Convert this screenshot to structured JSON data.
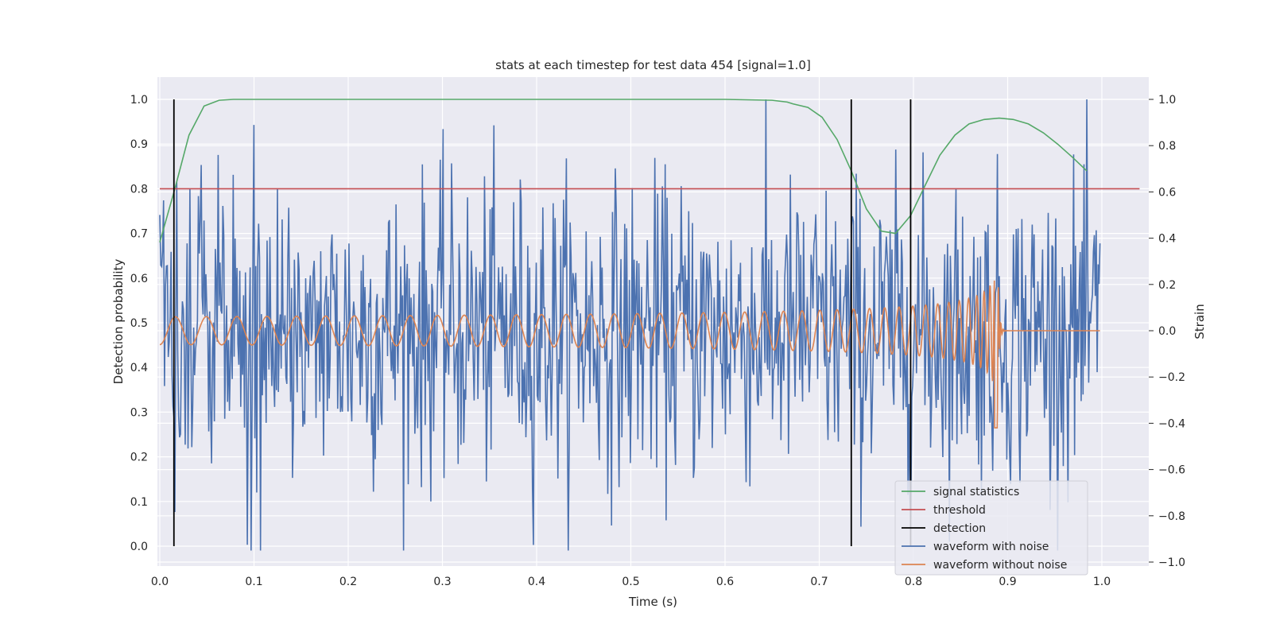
{
  "chart_data": {
    "type": "line",
    "title": "stats at each timestep for test data 454 [signal=1.0]",
    "xlabel": "Time (s)",
    "ylabel": "Detection probability",
    "y2label": "Strain",
    "xlim": [
      0.0,
      1.05
    ],
    "ylim": [
      -0.04,
      1.05
    ],
    "y2lim": [
      -1.04,
      1.04
    ],
    "xticks": [
      "0.0",
      "0.1",
      "0.2",
      "0.3",
      "0.4",
      "0.5",
      "0.6",
      "0.7",
      "0.8",
      "0.9",
      "1.0"
    ],
    "yticks": [
      "0.0",
      "0.1",
      "0.2",
      "0.3",
      "0.4",
      "0.5",
      "0.6",
      "0.7",
      "0.8",
      "0.9",
      "1.0"
    ],
    "y2ticks": [
      "−1.0",
      "−0.8",
      "−0.6",
      "−0.4",
      "−0.2",
      "0.0",
      "0.2",
      "0.4",
      "0.6",
      "0.8",
      "1.0"
    ],
    "grid": true,
    "legend_position": "lower-right",
    "colors": {
      "signal_statistics": "#55a868",
      "threshold": "#c44e52",
      "detection": "#000000",
      "waveform_with_noise": "#4c72b0",
      "waveform_without_noise": "#dd8452",
      "plot_background": "#eaeaf2",
      "grid": "#ffffff"
    },
    "series": [
      {
        "name": "signal statistics",
        "axis": "left",
        "x": [
          0.0,
          0.016,
          0.031,
          0.047,
          0.063,
          0.078,
          0.1,
          0.2,
          0.3,
          0.4,
          0.5,
          0.6,
          0.65,
          0.666,
          0.672,
          0.688,
          0.703,
          0.719,
          0.734,
          0.75,
          0.766,
          0.781,
          0.797,
          0.813,
          0.828,
          0.844,
          0.859,
          0.875,
          0.891,
          0.906,
          0.922,
          0.938,
          0.953,
          0.969,
          0.984
        ],
        "y": [
          0.68,
          0.8,
          0.92,
          0.985,
          0.998,
          1.0,
          1.0,
          1.0,
          1.0,
          1.0,
          1.0,
          1.0,
          0.998,
          0.994,
          0.99,
          0.982,
          0.96,
          0.91,
          0.84,
          0.755,
          0.705,
          0.7,
          0.74,
          0.81,
          0.875,
          0.92,
          0.945,
          0.955,
          0.958,
          0.955,
          0.945,
          0.925,
          0.9,
          0.87,
          0.84
        ]
      },
      {
        "name": "threshold",
        "axis": "left",
        "x": [
          0.0,
          1.04
        ],
        "y": [
          0.8,
          0.8
        ]
      },
      {
        "name": "detection",
        "axis": "left",
        "x": [
          0.015,
          0.734,
          0.797
        ],
        "ymin": 0.0,
        "ymax": 1.0
      },
      {
        "name": "waveform with noise",
        "axis": "right",
        "type": "noise",
        "x_range": [
          0.0,
          0.998
        ],
        "samples": 1000,
        "y_range_observed": [
          -0.95,
          1.0
        ]
      },
      {
        "name": "waveform without noise",
        "axis": "right",
        "type": "chirp",
        "x_range": [
          0.0,
          0.998
        ],
        "merger_time": 0.889,
        "peak_strain": -0.42,
        "initial_amplitude": 0.06,
        "initial_frequency_hz": 30,
        "post_merger_value": 0.0
      }
    ]
  }
}
